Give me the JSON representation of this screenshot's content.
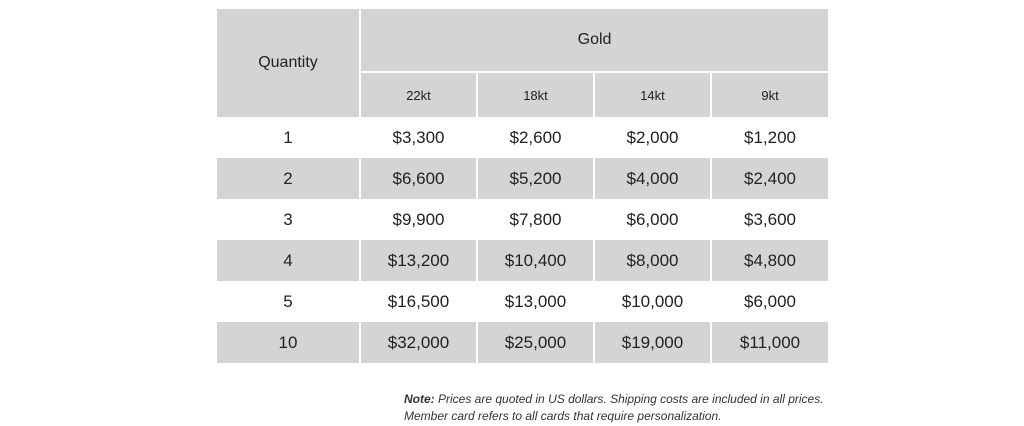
{
  "table": {
    "quantity_header": "Quantity",
    "group_header": "Gold",
    "karat_headers": [
      "22kt",
      "18kt",
      "14kt",
      "9kt"
    ],
    "rows": [
      {
        "quantity": "1",
        "prices": [
          "$3,300",
          "$2,600",
          "$2,000",
          "$1,200"
        ]
      },
      {
        "quantity": "2",
        "prices": [
          "$6,600",
          "$5,200",
          "$4,000",
          "$2,400"
        ]
      },
      {
        "quantity": "3",
        "prices": [
          "$9,900",
          "$7,800",
          "$6,000",
          "$3,600"
        ]
      },
      {
        "quantity": "4",
        "prices": [
          "$13,200",
          "$10,400",
          "$8,000",
          "$4,800"
        ]
      },
      {
        "quantity": "5",
        "prices": [
          "$16,500",
          "$13,000",
          "$10,000",
          "$6,000"
        ]
      },
      {
        "quantity": "10",
        "prices": [
          "$32,000",
          "$25,000",
          "$19,000",
          "$11,000"
        ]
      }
    ]
  },
  "note": {
    "label": "Note:",
    "line1": " Prices are quoted in US dollars. Shipping costs are included in all prices.",
    "line2": "Member card refers to all cards that require personalization."
  },
  "colors": {
    "shade": "#d4d4d4",
    "text": "#222222",
    "background": "#ffffff"
  }
}
